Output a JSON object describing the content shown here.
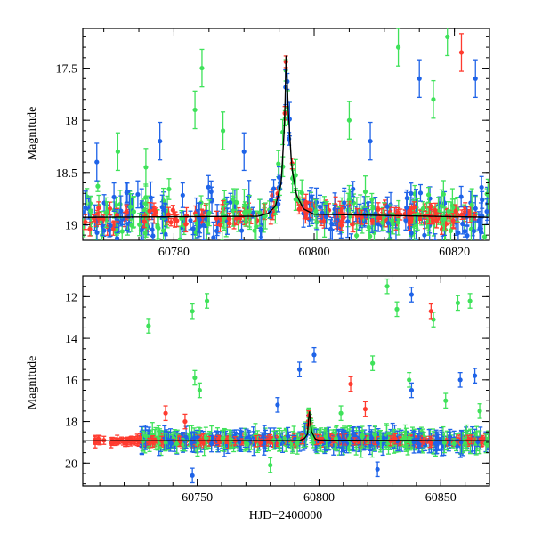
{
  "chart_data": [
    {
      "type": "scatter",
      "panel": "top",
      "xlabel": "",
      "ylabel": "Magnitude",
      "xlim": [
        60767,
        60825
      ],
      "ylim": [
        19.15,
        17.12
      ],
      "y_inverted": true,
      "x_ticks": [
        60780,
        60800,
        60820
      ],
      "y_ticks": [
        17.5,
        18,
        18.5,
        19
      ],
      "x_tick_labels": [
        "60780",
        "60800",
        "60820"
      ],
      "y_tick_labels": [
        "17.5",
        "18",
        "18.5",
        "19"
      ],
      "model_curve": {
        "x": [
          60767,
          60792.0,
          60793.5,
          60794.5,
          60795.3,
          60795.8,
          60796.0,
          60796.3,
          60796.8,
          60797.5,
          60798.5,
          60800.0,
          60825
        ],
        "y": [
          18.93,
          18.92,
          18.89,
          18.82,
          18.6,
          18.0,
          17.38,
          17.9,
          18.45,
          18.72,
          18.85,
          18.9,
          18.93
        ]
      },
      "series": [
        {
          "color": "#ff3b2f",
          "role": "red points"
        },
        {
          "color": "#1e63e8",
          "role": "blue points"
        },
        {
          "color": "#3fe25a",
          "role": "green points"
        }
      ],
      "grid": false
    },
    {
      "type": "scatter",
      "panel": "bottom",
      "xlabel": "HJD−2400000",
      "ylabel": "Magnitude",
      "xlim": [
        60703,
        60870
      ],
      "ylim": [
        21.1,
        11.0
      ],
      "y_inverted": true,
      "x_ticks": [
        60750,
        60800,
        60850
      ],
      "y_ticks": [
        12,
        14,
        16,
        18,
        20
      ],
      "x_tick_labels": [
        "60750",
        "60800",
        "60850"
      ],
      "y_tick_labels": [
        "12",
        "14",
        "16",
        "18",
        "20"
      ],
      "model_curve": {
        "x": [
          60703,
          60792.0,
          60794.0,
          60795.3,
          60796.0,
          60796.8,
          60798.5,
          60800.0,
          60870
        ],
        "y": [
          18.93,
          18.92,
          18.82,
          18.6,
          17.38,
          18.45,
          18.85,
          18.9,
          18.93
        ]
      },
      "outliers": [
        {
          "x": 60730,
          "y": 13.4,
          "series": 2
        },
        {
          "x": 60748,
          "y": 12.7,
          "series": 2
        },
        {
          "x": 60754,
          "y": 12.2,
          "series": 2
        },
        {
          "x": 60828,
          "y": 11.5,
          "series": 2
        },
        {
          "x": 60832,
          "y": 12.6,
          "series": 2
        },
        {
          "x": 60847,
          "y": 13.1,
          "series": 2
        },
        {
          "x": 60862,
          "y": 12.2,
          "series": 2
        },
        {
          "x": 60857,
          "y": 12.3,
          "series": 2
        },
        {
          "x": 60838,
          "y": 11.9,
          "series": 1
        },
        {
          "x": 60846,
          "y": 12.7,
          "series": 0
        },
        {
          "x": 60792,
          "y": 15.5,
          "series": 1
        },
        {
          "x": 60798,
          "y": 14.8,
          "series": 1
        },
        {
          "x": 60749,
          "y": 15.9,
          "series": 2
        },
        {
          "x": 60751,
          "y": 16.5,
          "series": 2
        },
        {
          "x": 60822,
          "y": 15.2,
          "series": 2
        },
        {
          "x": 60838,
          "y": 16.5,
          "series": 1
        },
        {
          "x": 60837,
          "y": 16.0,
          "series": 2
        },
        {
          "x": 60858,
          "y": 16.0,
          "series": 1
        },
        {
          "x": 60864,
          "y": 15.8,
          "series": 1
        },
        {
          "x": 60813,
          "y": 16.2,
          "series": 0
        },
        {
          "x": 60737,
          "y": 17.6,
          "series": 0
        },
        {
          "x": 60745,
          "y": 18.0,
          "series": 0
        },
        {
          "x": 60783,
          "y": 17.2,
          "series": 1
        },
        {
          "x": 60809,
          "y": 17.6,
          "series": 2
        },
        {
          "x": 60819,
          "y": 17.4,
          "series": 0
        },
        {
          "x": 60748,
          "y": 20.6,
          "series": 1
        },
        {
          "x": 60780,
          "y": 20.1,
          "series": 2
        },
        {
          "x": 60824,
          "y": 20.3,
          "series": 1
        },
        {
          "x": 60852,
          "y": 17.0,
          "series": 2
        },
        {
          "x": 60866,
          "y": 17.5,
          "series": 2
        }
      ],
      "series": [
        {
          "color": "#ff3b2f",
          "role": "red points"
        },
        {
          "color": "#1e63e8",
          "role": "blue points"
        },
        {
          "color": "#3fe25a",
          "role": "green points"
        }
      ],
      "grid": false
    }
  ]
}
